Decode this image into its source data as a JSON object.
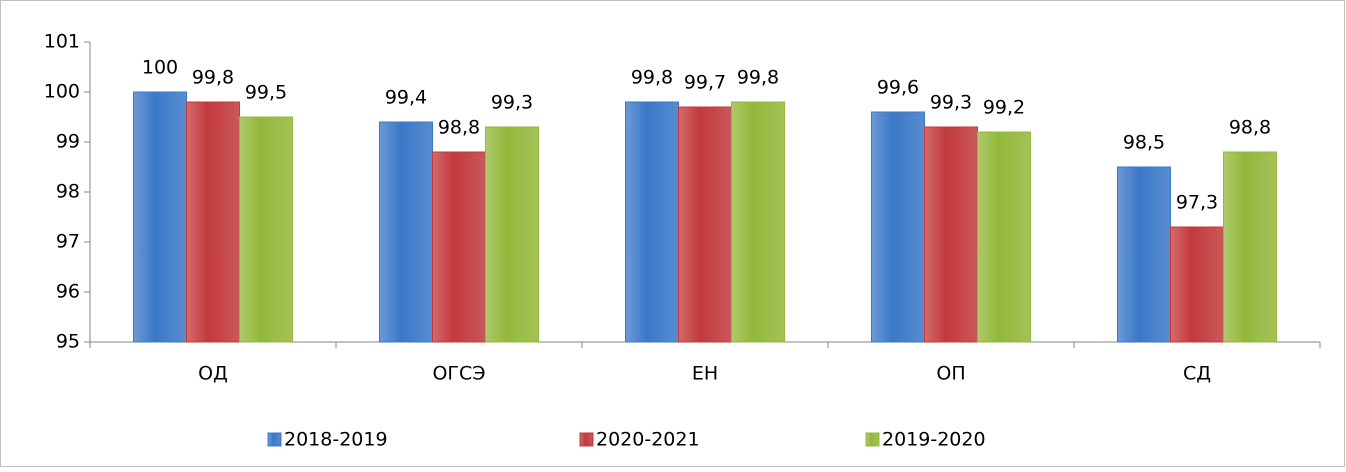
{
  "chart_data": {
    "type": "bar",
    "categories": [
      "ОД",
      "ОГСЭ",
      "ЕН",
      "ОП",
      "СД"
    ],
    "series": [
      {
        "name": "2018-2019",
        "color": "#3b78c8",
        "values": [
          100,
          99.4,
          99.8,
          99.6,
          98.5
        ],
        "value_labels": [
          "100",
          "99,4",
          "99,8",
          "99,6",
          "98,5"
        ]
      },
      {
        "name": "2020-2021",
        "color": "#c23a3c",
        "values": [
          99.8,
          98.8,
          99.7,
          99.3,
          97.3
        ],
        "value_labels": [
          "99,8",
          "98,8",
          "99,7",
          "99,3",
          "97,3"
        ]
      },
      {
        "name": "2019-2020",
        "color": "#93b83b",
        "values": [
          99.5,
          99.3,
          99.8,
          99.2,
          98.8
        ],
        "value_labels": [
          "99,5",
          "99,3",
          "99,8",
          "99,2",
          "98,8"
        ]
      }
    ],
    "ylim": [
      95,
      101
    ],
    "yticks": [
      95,
      96,
      97,
      98,
      99,
      100,
      101
    ],
    "grid": false,
    "legend": "bottom"
  }
}
